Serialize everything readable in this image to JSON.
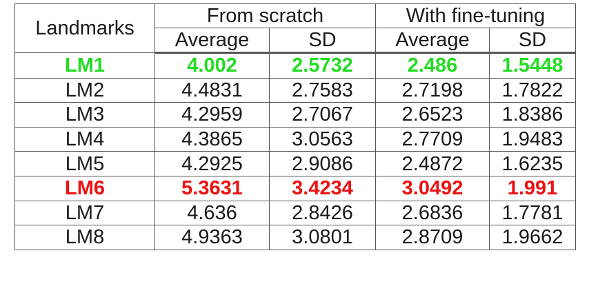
{
  "table": {
    "header": {
      "landmark": "Landmarks",
      "groups": [
        "From scratch",
        "With fine-tuning"
      ],
      "subcolumns": [
        "Average",
        "SD",
        "Average",
        "SD"
      ]
    },
    "rows": [
      {
        "landmark": "LM1",
        "values": [
          "4.002",
          "2.5732",
          "2.486",
          "1.5448"
        ],
        "highlight": "best"
      },
      {
        "landmark": "LM2",
        "values": [
          "4.4831",
          "2.7583",
          "2.7198",
          "1.7822"
        ],
        "highlight": "none"
      },
      {
        "landmark": "LM3",
        "values": [
          "4.2959",
          "2.7067",
          "2.6523",
          "1.8386"
        ],
        "highlight": "none"
      },
      {
        "landmark": "LM4",
        "values": [
          "4.3865",
          "3.0563",
          "2.7709",
          "1.9483"
        ],
        "highlight": "none"
      },
      {
        "landmark": "LM5",
        "values": [
          "4.2925",
          "2.9086",
          "2.4872",
          "1.6235"
        ],
        "highlight": "none"
      },
      {
        "landmark": "LM6",
        "values": [
          "5.3631",
          "3.4234",
          "3.0492",
          "1.991"
        ],
        "highlight": "worst"
      },
      {
        "landmark": "LM7",
        "values": [
          "4.636",
          "2.8426",
          "2.6836",
          "1.7781"
        ],
        "highlight": "none"
      },
      {
        "landmark": "LM8",
        "values": [
          "4.9363",
          "3.0801",
          "2.8709",
          "1.9662"
        ],
        "highlight": "none"
      }
    ],
    "colors": {
      "best": "#22dd22",
      "worst": "#ee1111",
      "text": "#1a1a1a",
      "border": "#555555"
    }
  }
}
